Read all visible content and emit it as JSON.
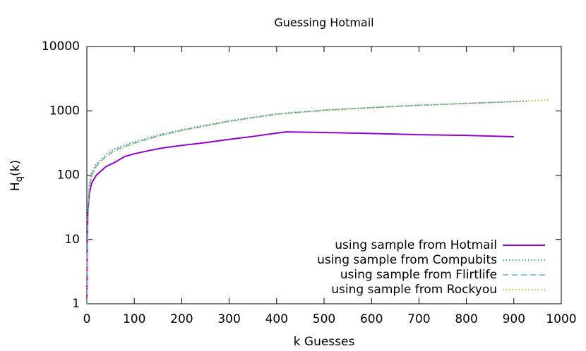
{
  "chart_data": {
    "type": "line",
    "title": "Guessing Hotmail",
    "xlabel": "k Guesses",
    "ylabel": [
      "H",
      "q",
      "(k)"
    ],
    "xlim": [
      0,
      1000
    ],
    "xticks": [
      0,
      100,
      200,
      300,
      400,
      500,
      600,
      700,
      800,
      900,
      1000
    ],
    "ylim": [
      1,
      10000
    ],
    "yticks": [
      1,
      10,
      100,
      1000,
      10000
    ],
    "log_y": true,
    "legend": "bottom-right",
    "series": [
      {
        "name": "using sample from Hotmail",
        "color": "#9400d3",
        "dash": "solid",
        "x": [
          0,
          1,
          2,
          5,
          10,
          20,
          40,
          60,
          80,
          100,
          130,
          160,
          200,
          250,
          300,
          350,
          400,
          420,
          500,
          600,
          700,
          800,
          900
        ],
        "values": [
          1,
          8,
          25,
          50,
          75,
          100,
          135,
          160,
          195,
          215,
          240,
          265,
          290,
          320,
          360,
          400,
          450,
          470,
          460,
          445,
          425,
          415,
          395
        ]
      },
      {
        "name": "using sample from Compubits",
        "color": "#009e73",
        "dash": "dotted",
        "x": [
          0,
          2,
          5,
          10,
          20,
          40,
          60,
          100,
          150,
          200,
          300,
          400,
          500,
          600,
          700,
          800,
          900,
          930
        ],
        "values": [
          1,
          30,
          70,
          110,
          150,
          210,
          260,
          330,
          420,
          510,
          700,
          900,
          1030,
          1130,
          1230,
          1310,
          1400,
          1420
        ]
      },
      {
        "name": "using sample from Flirtlife",
        "color": "#56b4e9",
        "dash": "dashed",
        "x": [
          0,
          2,
          5,
          10,
          20,
          40,
          60,
          100,
          150,
          200,
          300,
          400,
          500,
          600,
          700,
          800,
          900,
          910
        ],
        "values": [
          1,
          25,
          60,
          100,
          140,
          195,
          245,
          315,
          405,
          495,
          690,
          890,
          1020,
          1120,
          1220,
          1300,
          1390,
          1395
        ]
      },
      {
        "name": "using sample from Rockyou",
        "color": "#e69f00",
        "dash": "dotted",
        "x": [
          0,
          2,
          5,
          10,
          20,
          40,
          60,
          100,
          150,
          200,
          300,
          400,
          500,
          600,
          700,
          800,
          900,
          975
        ],
        "values": [
          1,
          20,
          55,
          95,
          135,
          190,
          240,
          310,
          400,
          490,
          680,
          880,
          1010,
          1110,
          1210,
          1300,
          1390,
          1480
        ]
      }
    ]
  }
}
